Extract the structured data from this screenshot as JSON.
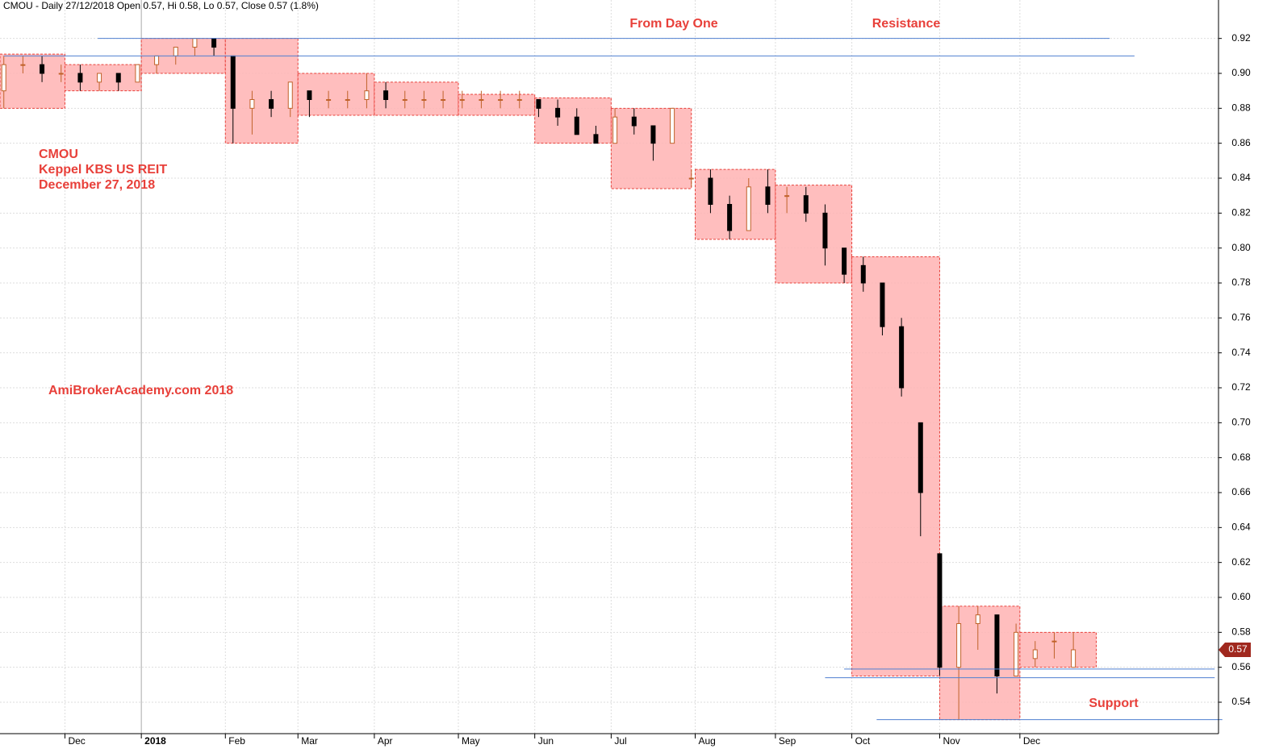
{
  "chart_data": {
    "type": "candlestick",
    "title": "CMOU - Daily 27/12/2018 Open 0.57, Hi 0.58, Lo 0.57, Close 0.57 (1.8%)",
    "annotations": [
      "From Day One",
      "Resistance",
      "Support",
      "CMOU",
      "Keppel KBS US REIT",
      "December 27, 2018",
      "AmiBrokerAcademy.com  2018"
    ],
    "last_price": 0.57,
    "xlim": [
      -1,
      318
    ],
    "ylim": [
      0.522,
      0.942
    ],
    "yticks": [
      0.54,
      0.56,
      0.58,
      {
        "value": 0.6,
        "label": "0.60"
      },
      0.62,
      0.64,
      0.66,
      0.68,
      {
        "value": 0.7,
        "label": "0.70"
      },
      0.72,
      0.74,
      0.76,
      0.78,
      {
        "value": 0.8,
        "label": "0.80"
      },
      0.82,
      0.84,
      0.86,
      0.88,
      {
        "value": 0.9,
        "label": "0.90"
      },
      0.92
    ],
    "xticks": [
      {
        "value": 16,
        "label": "Dec"
      },
      {
        "value": 36,
        "label": "2018"
      },
      {
        "value": 58,
        "label": "Feb"
      },
      {
        "value": 77,
        "label": "Mar"
      },
      {
        "value": 97,
        "label": "Apr"
      },
      {
        "value": 119,
        "label": "May"
      },
      {
        "value": 139,
        "label": "Jun"
      },
      {
        "value": 159,
        "label": "Jul"
      },
      {
        "value": 181,
        "label": "Aug"
      },
      {
        "value": 202,
        "label": "Sep"
      },
      {
        "value": 222,
        "label": "Oct"
      },
      {
        "value": 245,
        "label": "Nov"
      },
      {
        "value": 266,
        "label": "Dec"
      }
    ],
    "up_color": "#c0622a",
    "down_color": "#000000",
    "box_color": "#ffb3b3",
    "box_border": "#e8403a",
    "line_color": "#4f7fd0",
    "x": [
      0,
      5,
      10,
      15,
      20,
      25,
      30,
      35,
      40,
      45,
      50,
      55,
      60,
      65,
      70,
      75,
      80,
      85,
      90,
      95,
      100,
      105,
      110,
      115,
      120,
      125,
      130,
      135,
      140,
      145,
      150,
      155,
      160,
      165,
      170,
      175,
      180,
      185,
      190,
      195,
      200,
      205,
      210,
      215,
      220,
      225,
      230,
      235,
      240,
      245,
      250,
      255,
      260,
      265,
      270,
      275,
      280
    ],
    "open": [
      0.89,
      0.905,
      0.905,
      0.9,
      0.9,
      0.895,
      0.9,
      0.895,
      0.905,
      0.91,
      0.915,
      0.92,
      0.91,
      0.88,
      0.885,
      0.88,
      0.89,
      0.885,
      0.885,
      0.885,
      0.89,
      0.885,
      0.885,
      0.885,
      0.885,
      0.885,
      0.885,
      0.885,
      0.885,
      0.88,
      0.875,
      0.865,
      0.86,
      0.875,
      0.87,
      0.86,
      0.84,
      0.84,
      0.825,
      0.81,
      0.835,
      0.83,
      0.83,
      0.82,
      0.8,
      0.79,
      0.78,
      0.755,
      0.7,
      0.625,
      0.56,
      0.585,
      0.59,
      0.555,
      0.565,
      0.575,
      0.56
    ],
    "high": [
      0.91,
      0.91,
      0.91,
      0.905,
      0.905,
      0.9,
      0.9,
      0.905,
      0.91,
      0.915,
      0.92,
      0.92,
      0.91,
      0.89,
      0.89,
      0.895,
      0.89,
      0.89,
      0.89,
      0.9,
      0.895,
      0.89,
      0.89,
      0.89,
      0.89,
      0.89,
      0.89,
      0.89,
      0.885,
      0.885,
      0.88,
      0.87,
      0.88,
      0.88,
      0.87,
      0.88,
      0.845,
      0.845,
      0.83,
      0.84,
      0.845,
      0.835,
      0.835,
      0.825,
      0.8,
      0.795,
      0.78,
      0.76,
      0.7,
      0.625,
      0.595,
      0.595,
      0.59,
      0.585,
      0.575,
      0.58,
      0.58
    ],
    "low": [
      0.88,
      0.9,
      0.895,
      0.895,
      0.89,
      0.89,
      0.89,
      0.895,
      0.9,
      0.905,
      0.91,
      0.91,
      0.86,
      0.865,
      0.875,
      0.875,
      0.875,
      0.88,
      0.88,
      0.88,
      0.88,
      0.88,
      0.88,
      0.88,
      0.88,
      0.88,
      0.88,
      0.88,
      0.875,
      0.87,
      0.865,
      0.86,
      0.86,
      0.865,
      0.85,
      0.86,
      0.835,
      0.82,
      0.805,
      0.81,
      0.82,
      0.82,
      0.815,
      0.79,
      0.78,
      0.775,
      0.75,
      0.715,
      0.635,
      0.555,
      0.53,
      0.57,
      0.545,
      0.555,
      0.56,
      0.565,
      0.56
    ],
    "close": [
      0.905,
      0.905,
      0.9,
      0.9,
      0.895,
      0.9,
      0.895,
      0.905,
      0.91,
      0.915,
      0.92,
      0.915,
      0.88,
      0.885,
      0.88,
      0.895,
      0.885,
      0.885,
      0.885,
      0.89,
      0.885,
      0.885,
      0.885,
      0.885,
      0.885,
      0.885,
      0.885,
      0.885,
      0.88,
      0.875,
      0.865,
      0.86,
      0.875,
      0.87,
      0.86,
      0.88,
      0.84,
      0.825,
      0.81,
      0.835,
      0.825,
      0.83,
      0.82,
      0.8,
      0.785,
      0.78,
      0.755,
      0.72,
      0.66,
      0.56,
      0.585,
      0.59,
      0.555,
      0.58,
      0.57,
      0.575,
      0.57
    ],
    "boxes": [
      {
        "start": -1,
        "end": 16,
        "high": 0.911,
        "low": 0.88
      },
      {
        "start": 16,
        "end": 36,
        "high": 0.905,
        "low": 0.89
      },
      {
        "start": 36,
        "end": 58,
        "high": 0.92,
        "low": 0.9
      },
      {
        "start": 58,
        "end": 77,
        "high": 0.92,
        "low": 0.86
      },
      {
        "start": 77,
        "end": 97,
        "high": 0.9,
        "low": 0.876
      },
      {
        "start": 97,
        "end": 119,
        "high": 0.895,
        "low": 0.876
      },
      {
        "start": 119,
        "end": 139,
        "high": 0.888,
        "low": 0.876
      },
      {
        "start": 139,
        "end": 159,
        "high": 0.886,
        "low": 0.86
      },
      {
        "start": 159,
        "end": 180,
        "high": 0.88,
        "low": 0.834
      },
      {
        "start": 181,
        "end": 202,
        "high": 0.845,
        "low": 0.805
      },
      {
        "start": 202,
        "end": 222,
        "high": 0.836,
        "low": 0.78
      },
      {
        "start": 222,
        "end": 245,
        "high": 0.795,
        "low": 0.555
      },
      {
        "start": 245,
        "end": 266,
        "high": 0.595,
        "low": 0.53
      },
      {
        "start": 266,
        "end": 286,
        "high": 0.58,
        "low": 0.56
      }
    ],
    "levels": [
      {
        "y": 0.92,
        "from": 24.6,
        "to": 289.5
      },
      {
        "y": 0.91,
        "from": 0,
        "to": 296
      },
      {
        "y": 0.559,
        "from": 220,
        "to": 317
      },
      {
        "y": 0.554,
        "from": 215,
        "to": 317
      },
      {
        "y": 0.53,
        "from": 228.5,
        "to": 319
      }
    ]
  }
}
